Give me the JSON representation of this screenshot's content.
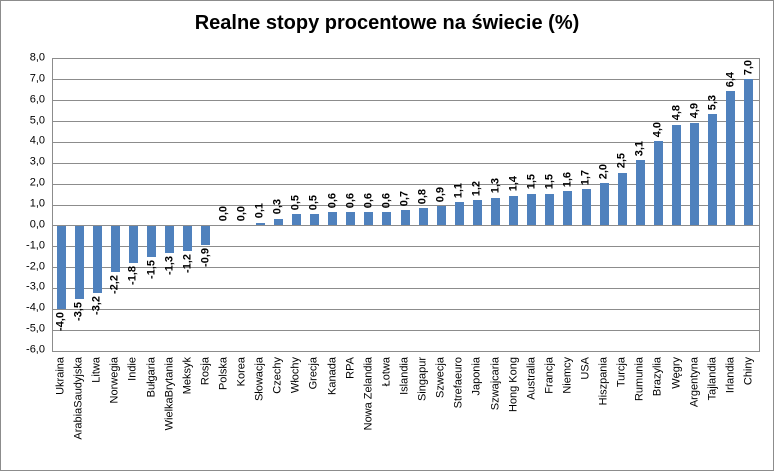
{
  "chart_data": {
    "type": "bar",
    "title": "Realne stopy procentowe na świecie (%)",
    "categories": [
      "Ukraina",
      "ArabiaSaudyjska",
      "Litwa",
      "Norwegia",
      "Indie",
      "Bułgaria",
      "WielkaBrytania",
      "Meksyk",
      "Rosja",
      "Polska",
      "Korea",
      "Słowacja",
      "Czechy",
      "Włochy",
      "Grecja",
      "Kanada",
      "RPA",
      "Nowa Zelandia",
      "Łotwa",
      "Islandia",
      "Singapur",
      "Szwecja",
      "Strefaeuro",
      "Japonia",
      "Szwajcaria",
      "Hong Kong",
      "Australia",
      "Francja",
      "Niemcy",
      "USA",
      "Hiszpania",
      "Turcja",
      "Rumunia",
      "Brazylia",
      "Węgry",
      "Argentyna",
      "Tajlandia",
      "Irlandia",
      "Chiny"
    ],
    "values": [
      -4.0,
      -3.5,
      -3.2,
      -2.2,
      -1.8,
      -1.5,
      -1.3,
      -1.2,
      -0.9,
      0.0,
      0.0,
      0.1,
      0.3,
      0.5,
      0.5,
      0.6,
      0.6,
      0.6,
      0.6,
      0.7,
      0.8,
      0.9,
      1.1,
      1.2,
      1.3,
      1.4,
      1.5,
      1.5,
      1.6,
      1.7,
      2.0,
      2.5,
      3.1,
      4.0,
      4.8,
      4.9,
      5.3,
      6.4,
      7.0
    ],
    "values_display": [
      "-4,0",
      "-3,5",
      "-3,2",
      "-2,2",
      "-1,8",
      "-1,5",
      "-1,3",
      "-1,2",
      "-0,9",
      "0,0",
      "0,0",
      "0,1",
      "0,3",
      "0,5",
      "0,5",
      "0,6",
      "0,6",
      "0,6",
      "0,6",
      "0,7",
      "0,8",
      "0,9",
      "1,1",
      "1,2",
      "1,3",
      "1,4",
      "1,5",
      "1,5",
      "1,6",
      "1,7",
      "2,0",
      "2,5",
      "3,1",
      "4,0",
      "4,8",
      "4,9",
      "5,3",
      "6,4",
      "7,0"
    ],
    "y_tick_labels": [
      "8,0",
      "7,0",
      "6,0",
      "5,0",
      "4,0",
      "3,0",
      "2,0",
      "1,0",
      "0,0",
      "-1,0",
      "-2,0",
      "-3,0",
      "-4,0",
      "-5,0",
      "-6,0"
    ],
    "ylim": [
      -6,
      8
    ],
    "ytick_step": 1,
    "grid": true,
    "legend": false,
    "xlabel": "",
    "ylabel": "",
    "bar_color": "#4F81BD",
    "gridline_color": "#8C8C8C"
  }
}
